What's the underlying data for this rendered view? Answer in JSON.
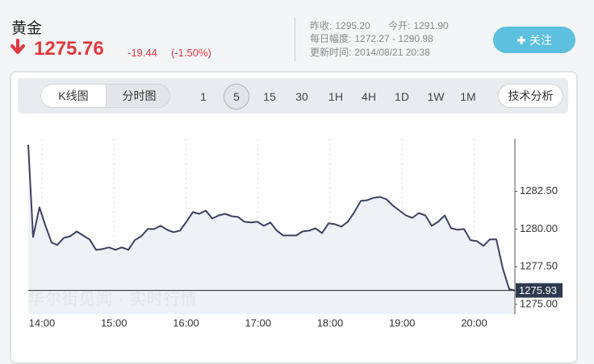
{
  "header": {
    "title": "黄金",
    "price": "1275.76",
    "change": "-19.44",
    "change_pct": "(-1.50%)",
    "stats": [
      {
        "label": "昨收:",
        "value": "1295.20"
      },
      {
        "label": "今开:",
        "value": "1291.90"
      },
      {
        "label": "每日幅度:",
        "value": "1272.27 - 1290.98"
      },
      {
        "label": "更新时间:",
        "value": "2014/08/21 20:38"
      }
    ],
    "follow_button": "关注"
  },
  "toolbar": {
    "chart_types": [
      "K线图",
      "分时图"
    ],
    "active_chart_type": 1,
    "periods": [
      "1",
      "5",
      "15",
      "30",
      "1H",
      "4H",
      "1D",
      "1W",
      "1M"
    ],
    "active_period": 1,
    "analysis_button": "技术分析"
  },
  "chart_data": {
    "type": "line",
    "watermark": "华尔街见闻 · 实时行情",
    "x": [
      13.81,
      13.877,
      13.966,
      14.045,
      14.134,
      14.213,
      14.303,
      14.392,
      14.482,
      14.571,
      14.661,
      14.751,
      14.84,
      14.93,
      15.02,
      15.109,
      15.199,
      15.289,
      15.378,
      15.468,
      15.557,
      15.647,
      15.737,
      15.826,
      15.916,
      16.006,
      16.095,
      16.185,
      16.275,
      16.364,
      16.454,
      16.543,
      16.633,
      16.723,
      16.812,
      16.902,
      16.992,
      17.081,
      17.171,
      17.261,
      17.35,
      17.44,
      17.529,
      17.619,
      17.709,
      17.798,
      17.888,
      17.978,
      18.067,
      18.157,
      18.246,
      18.336,
      18.426,
      18.515,
      18.605,
      18.695,
      18.784,
      18.874,
      18.964,
      19.053,
      19.143,
      19.232,
      19.322,
      19.412,
      19.501,
      19.591,
      19.681,
      19.77,
      19.86,
      19.95,
      20.039,
      20.129,
      20.218,
      20.308,
      20.398,
      20.487,
      20.566
    ],
    "series": [
      {
        "name": "黄金",
        "color": "#3d4162",
        "values": [
          1285.59,
          1279.47,
          1281.44,
          1280.27,
          1279.1,
          1278.94,
          1279.41,
          1279.52,
          1279.84,
          1279.57,
          1279.31,
          1278.62,
          1278.67,
          1278.78,
          1278.62,
          1278.78,
          1278.62,
          1279.26,
          1279.52,
          1280.0,
          1280.0,
          1280.21,
          1279.95,
          1279.79,
          1279.89,
          1280.48,
          1281.12,
          1281.01,
          1281.22,
          1280.69,
          1280.9,
          1281.01,
          1280.85,
          1280.8,
          1280.48,
          1280.43,
          1280.48,
          1280.21,
          1280.43,
          1279.89,
          1279.57,
          1279.57,
          1279.57,
          1279.84,
          1279.89,
          1280.05,
          1279.73,
          1280.37,
          1280.32,
          1280.16,
          1280.48,
          1281.12,
          1281.86,
          1281.91,
          1282.07,
          1282.13,
          1281.97,
          1281.54,
          1281.22,
          1280.9,
          1280.74,
          1281.06,
          1280.9,
          1280.21,
          1280.48,
          1280.9,
          1280.05,
          1279.95,
          1280.0,
          1279.26,
          1279.2,
          1278.88,
          1279.31,
          1279.31,
          1277.39,
          1276.01,
          1275.93
        ]
      }
    ],
    "last_price": 1275.93,
    "xlim": [
      13.81,
      20.566
    ],
    "xticks": [
      {
        "value": 14,
        "label": "14:00"
      },
      {
        "value": 15,
        "label": "15:00"
      },
      {
        "value": 16,
        "label": "16:00"
      },
      {
        "value": 17,
        "label": "17:00"
      },
      {
        "value": 18,
        "label": "18:00"
      },
      {
        "value": 19,
        "label": "19:00"
      },
      {
        "value": 20,
        "label": "20:00"
      }
    ],
    "ylim": [
      1274.36,
      1286.0
    ],
    "yticks": [
      {
        "value": 1275,
        "label": "1275.00"
      },
      {
        "value": 1277.5,
        "label": "1277.50"
      },
      {
        "value": 1280,
        "label": "1280.00"
      },
      {
        "value": 1282.5,
        "label": "1282.50"
      }
    ],
    "xgrid": true,
    "fill": "#eef1f6"
  }
}
